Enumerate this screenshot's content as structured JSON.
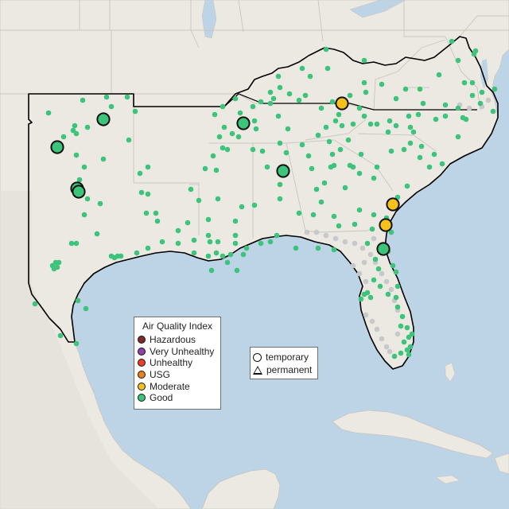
{
  "colors": {
    "water": "#bdd3e6",
    "land": "#ece9e3",
    "land_alt": "#e6e2da",
    "border": "#c9c6c0",
    "region_outline": "#000000",
    "hazardous": "#7e2a2a",
    "very_unhealthy": "#8f3fae",
    "unhealthy": "#e8412b",
    "usg": "#f07d1e",
    "moderate": "#f6c219",
    "good": "#3cc47a",
    "inactive": "#c6c8ca"
  },
  "aqi_legend": {
    "title": "Air Quality Index",
    "items": [
      {
        "label": "Hazardous",
        "color": "#7e2a2a"
      },
      {
        "label": "Very Unhealthy",
        "color": "#8f3fae"
      },
      {
        "label": "Unhealthy",
        "color": "#e8412b"
      },
      {
        "label": "USG",
        "color": "#f07d1e"
      },
      {
        "label": "Moderate",
        "color": "#f6c219"
      },
      {
        "label": "Good",
        "color": "#3cc47a"
      }
    ]
  },
  "monitor_type_legend": {
    "items": [
      {
        "label": "temporary",
        "shape": "circle"
      },
      {
        "label": "permanent",
        "shape": "triangle"
      }
    ]
  },
  "highlighted_monitors": [
    {
      "category": "Good"
    },
    {
      "category": "Good"
    },
    {
      "category": "Good"
    },
    {
      "category": "Good"
    },
    {
      "category": "Good"
    },
    {
      "category": "Good"
    },
    {
      "category": "Moderate"
    },
    {
      "category": "Moderate"
    },
    {
      "category": "Moderate"
    },
    {
      "category": "Good"
    }
  ]
}
